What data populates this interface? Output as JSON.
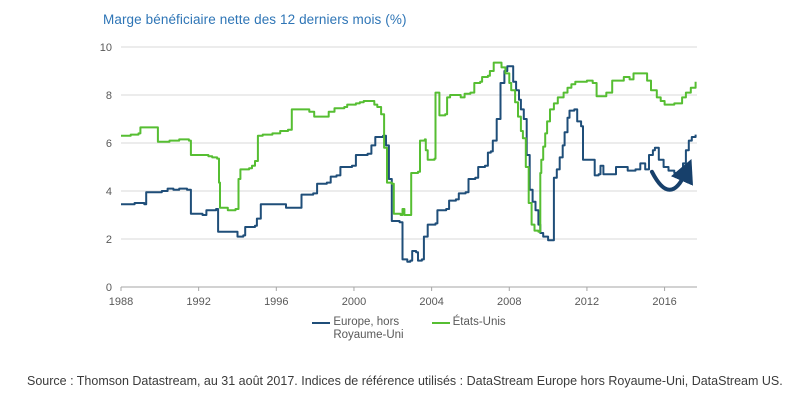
{
  "title": "Marge bénéficiaire nette des 12 derniers mois (%)",
  "source": "Source : Thomson Datastream, au 31 août 2017. Indices de référence utilisés : DataStream Europe hors Royaume-Uni, DataStream US.",
  "legend": {
    "europe_line1": "Europe, hors",
    "europe_line2": "Royaume-Uni",
    "us": "États-Unis"
  },
  "colors": {
    "title": "#2E75B6",
    "europe": "#1F4E79",
    "us": "#56BE32",
    "grid": "#D9D9D9",
    "axis": "#A6A6A6",
    "tick_text": "#595959",
    "legend_text": "#595959",
    "source_text": "#3B3B3B",
    "arrow": "#17406B"
  },
  "chart_data": {
    "type": "line",
    "title": "Marge bénéficiaire nette des 12 derniers mois (%)",
    "xlabel": "",
    "ylabel": "",
    "xlim": [
      1988,
      2017.67
    ],
    "ylim": [
      0,
      10
    ],
    "x_ticks": [
      1988,
      1992,
      1996,
      2000,
      2004,
      2008,
      2012,
      2016
    ],
    "y_ticks": [
      0,
      2,
      4,
      6,
      8,
      10
    ],
    "grid": "horizontal",
    "legend_position": "bottom",
    "interpolation": "step-after",
    "series": [
      {
        "name": "Europe, hors Royaume-Uni",
        "key": "europe",
        "color_key": "europe",
        "points": [
          [
            1988.0,
            3.45
          ],
          [
            1988.7,
            3.5
          ],
          [
            1989.2,
            3.45
          ],
          [
            1989.3,
            3.95
          ],
          [
            1990.1,
            4.0
          ],
          [
            1990.4,
            4.1
          ],
          [
            1990.7,
            4.05
          ],
          [
            1991.0,
            4.1
          ],
          [
            1991.4,
            4.05
          ],
          [
            1991.6,
            3.05
          ],
          [
            1992.2,
            3.0
          ],
          [
            1992.4,
            3.2
          ],
          [
            1992.9,
            3.25
          ],
          [
            1993.0,
            2.3
          ],
          [
            1993.8,
            2.3
          ],
          [
            1994.0,
            2.1
          ],
          [
            1994.3,
            2.15
          ],
          [
            1994.4,
            2.5
          ],
          [
            1994.9,
            2.55
          ],
          [
            1995.0,
            2.85
          ],
          [
            1995.2,
            3.45
          ],
          [
            1996.3,
            3.45
          ],
          [
            1996.5,
            3.3
          ],
          [
            1997.2,
            3.3
          ],
          [
            1997.3,
            3.85
          ],
          [
            1997.9,
            3.9
          ],
          [
            1998.1,
            4.3
          ],
          [
            1998.6,
            4.35
          ],
          [
            1998.8,
            4.6
          ],
          [
            1999.1,
            4.65
          ],
          [
            1999.3,
            5.0
          ],
          [
            1999.9,
            5.05
          ],
          [
            2000.1,
            5.5
          ],
          [
            2000.7,
            5.55
          ],
          [
            2000.9,
            5.9
          ],
          [
            2001.1,
            6.25
          ],
          [
            2001.5,
            6.3
          ],
          [
            2001.65,
            5.9
          ],
          [
            2001.8,
            4.5
          ],
          [
            2001.95,
            2.75
          ],
          [
            2002.35,
            2.7
          ],
          [
            2002.5,
            1.15
          ],
          [
            2002.75,
            1.05
          ],
          [
            2002.9,
            1.1
          ],
          [
            2003.0,
            1.5
          ],
          [
            2003.2,
            1.45
          ],
          [
            2003.3,
            1.1
          ],
          [
            2003.5,
            1.15
          ],
          [
            2003.6,
            2.1
          ],
          [
            2003.8,
            2.6
          ],
          [
            2004.2,
            2.65
          ],
          [
            2004.3,
            3.2
          ],
          [
            2004.75,
            3.25
          ],
          [
            2004.9,
            3.6
          ],
          [
            2005.25,
            3.65
          ],
          [
            2005.4,
            3.9
          ],
          [
            2005.75,
            3.95
          ],
          [
            2005.9,
            4.5
          ],
          [
            2006.25,
            4.55
          ],
          [
            2006.4,
            5.0
          ],
          [
            2006.75,
            5.05
          ],
          [
            2006.9,
            5.6
          ],
          [
            2007.05,
            5.65
          ],
          [
            2007.15,
            6.1
          ],
          [
            2007.35,
            7.0
          ],
          [
            2007.55,
            8.5
          ],
          [
            2007.75,
            9.0
          ],
          [
            2007.9,
            9.2
          ],
          [
            2008.05,
            9.2
          ],
          [
            2008.2,
            8.55
          ],
          [
            2008.35,
            8.2
          ],
          [
            2008.5,
            7.8
          ],
          [
            2008.6,
            7.4
          ],
          [
            2008.75,
            7.0
          ],
          [
            2008.9,
            5.5
          ],
          [
            2009.05,
            4.05
          ],
          [
            2009.2,
            3.55
          ],
          [
            2009.35,
            3.2
          ],
          [
            2009.5,
            2.6
          ],
          [
            2009.6,
            2.25
          ],
          [
            2009.75,
            2.1
          ],
          [
            2010.0,
            1.95
          ],
          [
            2010.25,
            1.95
          ],
          [
            2010.3,
            4.55
          ],
          [
            2010.45,
            4.9
          ],
          [
            2010.6,
            5.4
          ],
          [
            2010.75,
            5.9
          ],
          [
            2010.85,
            6.45
          ],
          [
            2011.0,
            7.05
          ],
          [
            2011.1,
            7.35
          ],
          [
            2011.35,
            7.4
          ],
          [
            2011.5,
            6.9
          ],
          [
            2011.7,
            6.7
          ],
          [
            2011.8,
            5.3
          ],
          [
            2012.25,
            5.3
          ],
          [
            2012.4,
            4.65
          ],
          [
            2012.6,
            4.7
          ],
          [
            2012.7,
            5.05
          ],
          [
            2012.85,
            4.7
          ],
          [
            2013.3,
            4.7
          ],
          [
            2013.5,
            5.0
          ],
          [
            2013.9,
            5.0
          ],
          [
            2014.1,
            4.85
          ],
          [
            2014.5,
            4.9
          ],
          [
            2014.75,
            5.15
          ],
          [
            2015.0,
            4.9
          ],
          [
            2015.2,
            5.5
          ],
          [
            2015.4,
            5.7
          ],
          [
            2015.5,
            5.8
          ],
          [
            2015.7,
            5.3
          ],
          [
            2015.95,
            5.0
          ],
          [
            2016.2,
            4.85
          ],
          [
            2016.5,
            4.75
          ],
          [
            2016.7,
            4.65
          ],
          [
            2016.95,
            5.15
          ],
          [
            2017.1,
            5.7
          ],
          [
            2017.25,
            6.1
          ],
          [
            2017.4,
            6.25
          ],
          [
            2017.6,
            6.35
          ]
        ]
      },
      {
        "name": "États-Unis",
        "key": "us",
        "color_key": "us",
        "points": [
          [
            1988.0,
            6.3
          ],
          [
            1988.5,
            6.35
          ],
          [
            1988.9,
            6.4
          ],
          [
            1989.0,
            6.65
          ],
          [
            1989.75,
            6.65
          ],
          [
            1989.9,
            6.05
          ],
          [
            1990.5,
            6.1
          ],
          [
            1991.0,
            6.15
          ],
          [
            1991.5,
            6.1
          ],
          [
            1991.6,
            5.5
          ],
          [
            1992.5,
            5.45
          ],
          [
            1992.7,
            5.4
          ],
          [
            1992.95,
            5.35
          ],
          [
            1993.05,
            4.35
          ],
          [
            1993.1,
            3.3
          ],
          [
            1993.5,
            3.2
          ],
          [
            1993.9,
            3.25
          ],
          [
            1994.05,
            4.5
          ],
          [
            1994.15,
            4.9
          ],
          [
            1994.6,
            4.95
          ],
          [
            1994.75,
            5.05
          ],
          [
            1994.9,
            5.25
          ],
          [
            1995.05,
            6.3
          ],
          [
            1995.3,
            6.35
          ],
          [
            1995.8,
            6.4
          ],
          [
            1996.2,
            6.5
          ],
          [
            1996.6,
            6.55
          ],
          [
            1996.8,
            7.4
          ],
          [
            1997.5,
            7.4
          ],
          [
            1997.7,
            7.3
          ],
          [
            1997.95,
            7.1
          ],
          [
            1998.5,
            7.1
          ],
          [
            1998.7,
            7.3
          ],
          [
            1999.0,
            7.45
          ],
          [
            1999.5,
            7.5
          ],
          [
            1999.65,
            7.6
          ],
          [
            2000.1,
            7.65
          ],
          [
            2000.3,
            7.7
          ],
          [
            2000.5,
            7.75
          ],
          [
            2000.9,
            7.75
          ],
          [
            2001.05,
            7.6
          ],
          [
            2001.2,
            7.5
          ],
          [
            2001.4,
            7.2
          ],
          [
            2001.55,
            5.8
          ],
          [
            2001.7,
            4.35
          ],
          [
            2001.95,
            4.3
          ],
          [
            2002.05,
            3.05
          ],
          [
            2002.4,
            3.0
          ],
          [
            2002.5,
            3.25
          ],
          [
            2002.6,
            3.0
          ],
          [
            2002.85,
            3.0
          ],
          [
            2002.95,
            4.75
          ],
          [
            2003.3,
            4.8
          ],
          [
            2003.4,
            6.1
          ],
          [
            2003.65,
            6.15
          ],
          [
            2003.7,
            5.7
          ],
          [
            2003.8,
            5.3
          ],
          [
            2004.15,
            5.35
          ],
          [
            2004.2,
            8.1
          ],
          [
            2004.4,
            7.15
          ],
          [
            2004.7,
            7.2
          ],
          [
            2004.8,
            7.9
          ],
          [
            2004.95,
            8.0
          ],
          [
            2005.4,
            8.0
          ],
          [
            2005.5,
            7.9
          ],
          [
            2005.7,
            8.05
          ],
          [
            2006.0,
            8.1
          ],
          [
            2006.2,
            8.5
          ],
          [
            2006.5,
            8.55
          ],
          [
            2006.6,
            8.75
          ],
          [
            2006.9,
            8.8
          ],
          [
            2007.0,
            9.0
          ],
          [
            2007.2,
            9.35
          ],
          [
            2007.5,
            9.35
          ],
          [
            2007.6,
            9.15
          ],
          [
            2007.8,
            8.9
          ],
          [
            2008.0,
            8.5
          ],
          [
            2008.1,
            8.2
          ],
          [
            2008.3,
            7.7
          ],
          [
            2008.45,
            7.1
          ],
          [
            2008.6,
            6.5
          ],
          [
            2008.7,
            6.2
          ],
          [
            2008.85,
            5.0
          ],
          [
            2009.0,
            3.5
          ],
          [
            2009.15,
            2.6
          ],
          [
            2009.3,
            2.35
          ],
          [
            2009.5,
            2.3
          ],
          [
            2009.6,
            4.75
          ],
          [
            2009.65,
            5.3
          ],
          [
            2009.75,
            5.85
          ],
          [
            2009.85,
            6.4
          ],
          [
            2009.95,
            6.9
          ],
          [
            2010.1,
            7.4
          ],
          [
            2010.3,
            7.65
          ],
          [
            2010.5,
            7.9
          ],
          [
            2010.8,
            8.1
          ],
          [
            2011.0,
            8.3
          ],
          [
            2011.2,
            8.45
          ],
          [
            2011.4,
            8.55
          ],
          [
            2011.9,
            8.55
          ],
          [
            2012.0,
            8.6
          ],
          [
            2012.3,
            8.5
          ],
          [
            2012.5,
            7.95
          ],
          [
            2012.9,
            7.95
          ],
          [
            2013.0,
            8.1
          ],
          [
            2013.3,
            8.6
          ],
          [
            2013.6,
            8.6
          ],
          [
            2013.9,
            8.75
          ],
          [
            2014.1,
            8.75
          ],
          [
            2014.2,
            8.65
          ],
          [
            2014.4,
            8.9
          ],
          [
            2014.9,
            8.9
          ],
          [
            2015.1,
            8.6
          ],
          [
            2015.3,
            8.2
          ],
          [
            2015.6,
            7.9
          ],
          [
            2015.8,
            7.75
          ],
          [
            2016.0,
            7.6
          ],
          [
            2016.3,
            7.6
          ],
          [
            2016.5,
            7.65
          ],
          [
            2016.9,
            7.9
          ],
          [
            2017.1,
            8.1
          ],
          [
            2017.35,
            8.3
          ],
          [
            2017.6,
            8.55
          ]
        ]
      }
    ],
    "annotation": {
      "type": "curved-arrow",
      "description": "hand-drawn swoosh arrow under the Europe line 2015-2017 dip, pointing up-right at the rebound",
      "from": [
        2015.35,
        4.8
      ],
      "control": [
        2016.3,
        3.3
      ],
      "to": [
        2017.1,
        4.8
      ]
    }
  }
}
